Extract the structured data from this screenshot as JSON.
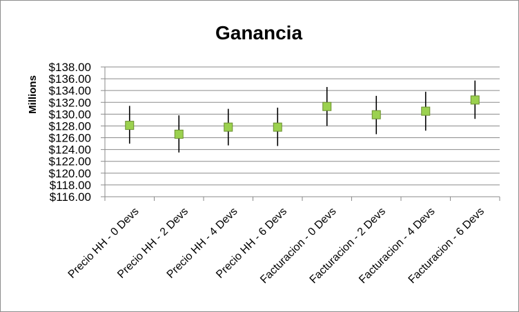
{
  "chart_data": {
    "type": "scatter",
    "title": "Ganancia",
    "ylabel": "Millions",
    "xlabel": "",
    "ylim": [
      116,
      138
    ],
    "ystep": 2,
    "y_tick_labels": [
      "$116.00",
      "$118.00",
      "$120.00",
      "$122.00",
      "$124.00",
      "$126.00",
      "$128.00",
      "$130.00",
      "$132.00",
      "$134.00",
      "$136.00",
      "$138.00"
    ],
    "categories": [
      "Precio HH - 0 Devs",
      "Precio HH - 2 Devs",
      "Precio HH - 4 Devs",
      "Precio HH - 6 Devs",
      "Facturacion - 0 Devs",
      "Facturacion - 2 Devs",
      "Facturacion - 4 Devs",
      "Facturacion - 6 Devs"
    ],
    "values": [
      128.1,
      126.6,
      127.8,
      127.8,
      131.3,
      129.9,
      130.5,
      132.4
    ],
    "error_high": [
      131.4,
      129.8,
      130.9,
      131.1,
      134.6,
      133.1,
      133.8,
      135.7
    ],
    "error_low": [
      125.0,
      123.5,
      124.7,
      124.6,
      128.0,
      126.6,
      127.2,
      129.2
    ],
    "grid": true,
    "legend": "none",
    "marker_color": "#9bd14f",
    "marker_edge": "#6a8e2f",
    "errorbar_color": "#000000",
    "grid_color": "#8a8a8a"
  }
}
